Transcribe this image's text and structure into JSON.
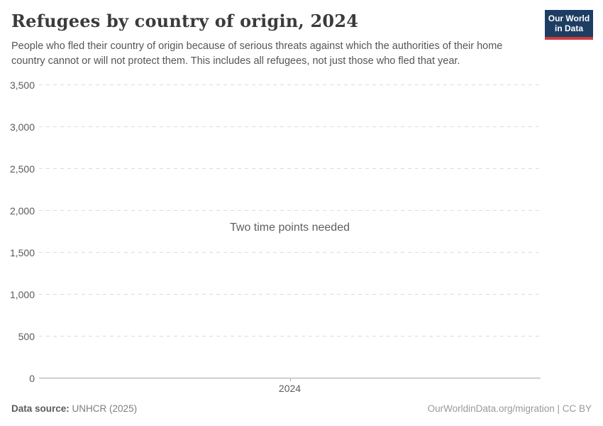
{
  "header": {
    "title": "Refugees by country of origin, 2024",
    "subtitle": "People who fled their country of origin because of serious threats against which the authorities of their home country cannot or will not protect them. This includes all refugees, not just those who fled that year.",
    "logo": {
      "line1": "Our World",
      "line2": "in Data",
      "bg_color": "#1d3d63",
      "stripe_color": "#cf3b3b"
    }
  },
  "chart_data": {
    "type": "line",
    "title": "Refugees by country of origin, 2024",
    "series": [],
    "message": "Two time points needed",
    "xlabel": "",
    "ylabel": "",
    "ylim": [
      0,
      3500
    ],
    "yticks": [
      0,
      500,
      1000,
      1500,
      2000,
      2500,
      3000,
      3500
    ],
    "ytick_labels": [
      "0",
      "500",
      "1,000",
      "1,500",
      "2,000",
      "2,500",
      "3,000",
      "3,500"
    ],
    "xtick_labels": [
      "2024"
    ],
    "grid": "horizontal dashed, zero line solid",
    "legend": "none"
  },
  "footer": {
    "source_label": "Data source:",
    "source_value": "UNHCR (2025)",
    "attribution": "OurWorldinData.org/migration | CC BY"
  }
}
